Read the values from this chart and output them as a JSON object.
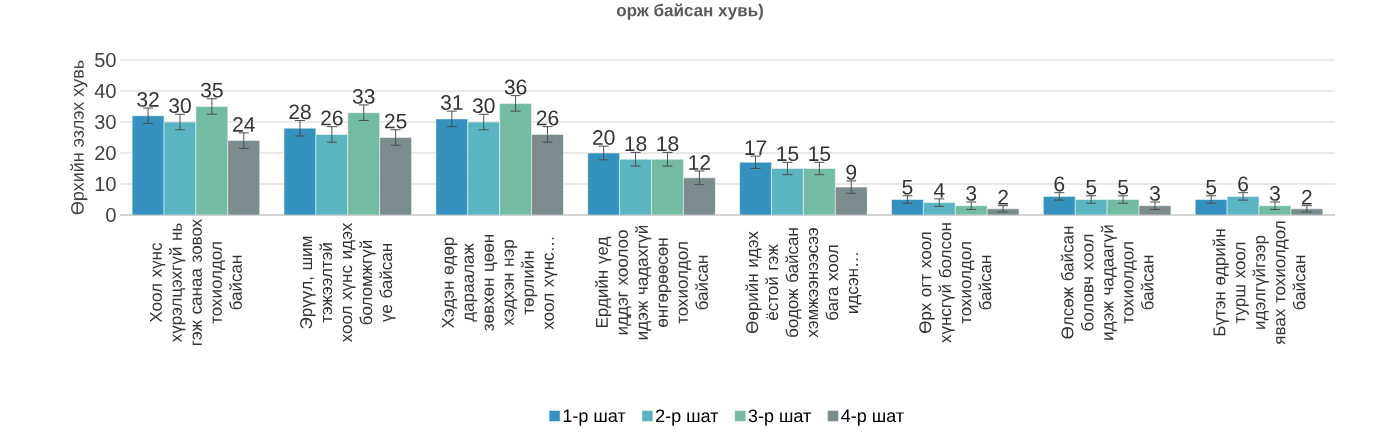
{
  "chart_data": {
    "type": "bar",
    "title": "орж байсан хувь)",
    "ylabel": "Өрхийн эзлэх хувь",
    "categories": [
      "Хоол хүнс хүрэлцэхгүй нь гэж санаа зовох тохиолдол байсан",
      "Эрүүл, шим тэжээлтэй хоол хүнс идэх боломжгүй үе байсан",
      "Хэдэн өдөр дараалаж зөвхөн цөөн хэдхэн нэр төрлийн хоол хүнс…",
      "Ердийн үед иддэг хоолоо идэж чадахгүй өнгөрөөсөн тохиолдол байсан",
      "Өөрийн идэх ёстой гэж бодож байсан хэмжээнээсээ бага хоол идсэн…",
      "Өрх огт хоол хүнсгүй болсон тохиолдол байсан",
      "Өлсөж байсан боловч хоол идэж чадаагүй тохиолдол байсан",
      "Бүтэн өдрийн турш хоол идэлгүйгээр явах тохиолдол байсан"
    ],
    "series": [
      {
        "name": "1-р шат",
        "color": "#3591bd",
        "values": [
          32,
          28,
          31,
          20,
          17,
          5,
          6,
          5
        ],
        "errors": [
          2.5,
          2.5,
          2.5,
          2.2,
          2,
          1.2,
          1.2,
          1.2
        ]
      },
      {
        "name": "2-р шат",
        "color": "#5bb4c2",
        "values": [
          30,
          26,
          30,
          18,
          15,
          4,
          5,
          6
        ],
        "errors": [
          2.5,
          2.5,
          2.5,
          2.2,
          2,
          1.2,
          1.2,
          1.2
        ]
      },
      {
        "name": "3-р шат",
        "color": "#74bba4",
        "values": [
          35,
          33,
          36,
          18,
          15,
          3,
          5,
          3
        ],
        "errors": [
          2.5,
          2.5,
          2.5,
          2.2,
          2,
          1.2,
          1.2,
          1.2
        ]
      },
      {
        "name": "4-р шат",
        "color": "#7a8c8e",
        "values": [
          24,
          25,
          26,
          12,
          9,
          2,
          3,
          2
        ],
        "errors": [
          2.5,
          2.5,
          2.5,
          2.2,
          2,
          1,
          1.2,
          1
        ]
      }
    ],
    "ylim": [
      0,
      50
    ],
    "yticks": [
      0,
      10,
      20,
      30,
      40,
      50
    ],
    "grid": "y",
    "legend": "bottom",
    "data_labels": true
  }
}
